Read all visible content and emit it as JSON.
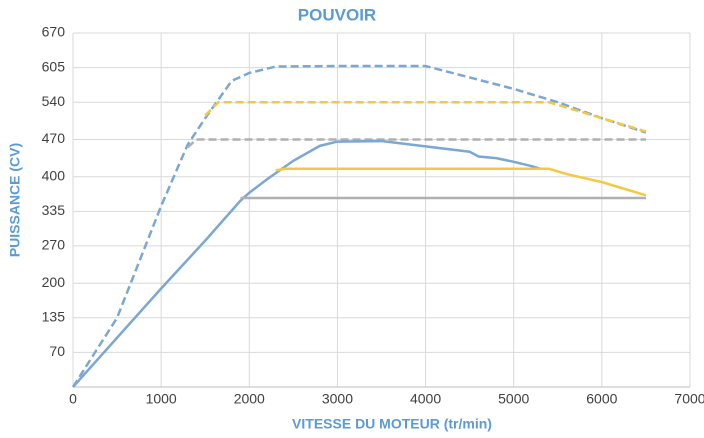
{
  "chart_data": {
    "type": "line",
    "title": "POUVOIR",
    "x_label": "VITESSE DU MOTEUR (tr/min)",
    "y_label": "PUISSANCE (CV)",
    "xlim": [
      0,
      7000
    ],
    "xticks": [
      0,
      1000,
      2000,
      3000,
      4000,
      5000,
      6000,
      7000
    ],
    "ylim": [
      5,
      670
    ],
    "yticks": [
      70,
      135,
      200,
      270,
      335,
      400,
      470,
      540,
      605,
      670
    ],
    "grid": true,
    "series": [
      {
        "color": "#7ba7d4",
        "dashed": true,
        "x": [
          0,
          500,
          1000,
          1300,
          1500,
          1800,
          2000,
          2300,
          3000,
          4000,
          5000,
          5500,
          6000,
          6500
        ],
        "values": [
          5,
          135,
          345,
          460,
          510,
          580,
          595,
          607,
          608,
          608,
          565,
          540,
          510,
          483
        ]
      },
      {
        "color": "#f5c842",
        "dashed": true,
        "x": [
          1500,
          1650,
          5400,
          6000,
          6500
        ],
        "values": [
          515,
          540,
          540,
          510,
          485
        ]
      },
      {
        "color": "#b0b0b0",
        "dashed": true,
        "x": [
          1300,
          1400,
          6500
        ],
        "values": [
          455,
          470,
          470
        ]
      },
      {
        "color": "#7ba7d4",
        "dashed": false,
        "x": [
          0,
          1000,
          1500,
          1900,
          2000,
          2200,
          2500,
          2800,
          3000,
          3500,
          4000,
          4500,
          4600,
          4800,
          5000,
          5200,
          5300
        ],
        "values": [
          5,
          190,
          280,
          355,
          370,
          395,
          430,
          458,
          466,
          467,
          457,
          447,
          438,
          435,
          428,
          420,
          415
        ]
      },
      {
        "color": "#f5c842",
        "dashed": false,
        "x": [
          2300,
          2400,
          5400,
          5600,
          6000,
          6200,
          6500
        ],
        "values": [
          412,
          415,
          415,
          405,
          390,
          380,
          365
        ]
      },
      {
        "color": "#b0b0b0",
        "dashed": false,
        "x": [
          1900,
          6500
        ],
        "values": [
          360,
          360
        ]
      }
    ]
  }
}
